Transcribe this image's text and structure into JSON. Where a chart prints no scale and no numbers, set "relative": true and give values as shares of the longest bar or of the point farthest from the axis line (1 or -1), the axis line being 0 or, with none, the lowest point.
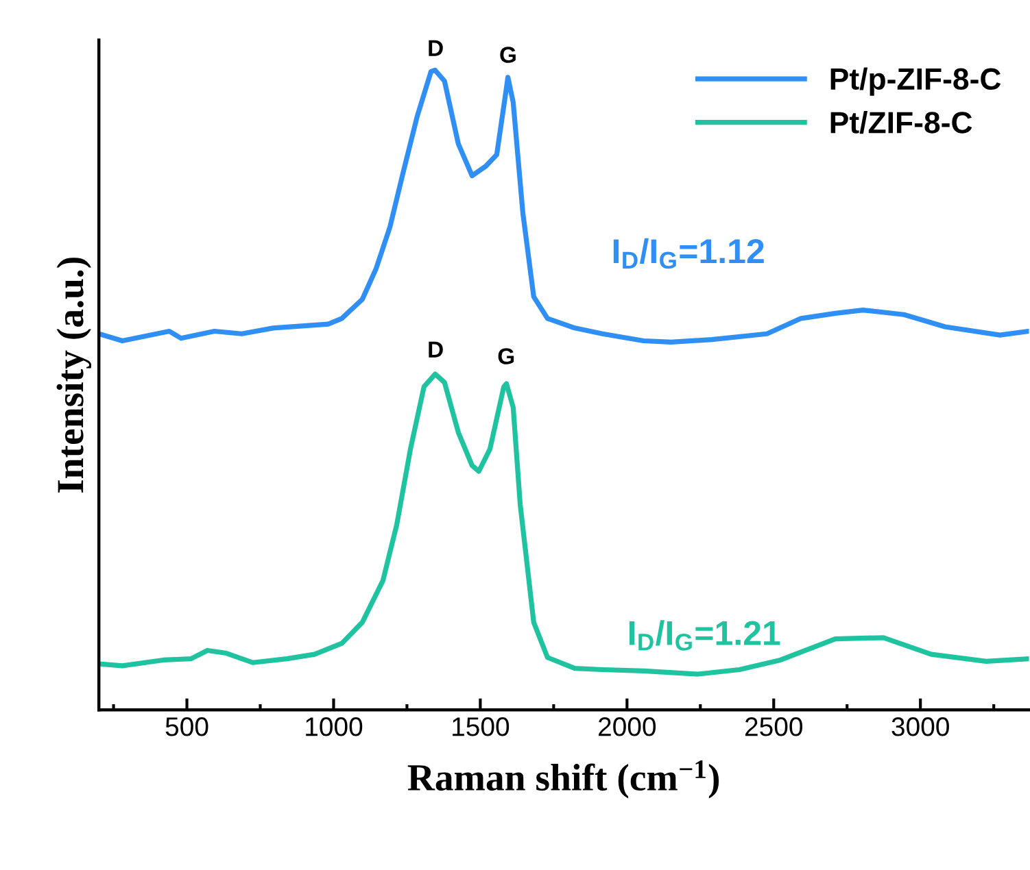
{
  "chart_data": {
    "type": "line",
    "relative": true,
    "xlabel": "Raman shift (cm$^{−1}$)",
    "ylabel": "Intensity (a.u.)",
    "xlim": [
      200,
      3370
    ],
    "xticks": [
      {
        "value": 250,
        "label": null
      },
      500,
      {
        "value": 750,
        "label": null
      },
      1000,
      {
        "value": 1250,
        "label": null
      },
      1500,
      {
        "value": 1750,
        "label": null
      },
      2000,
      {
        "value": 2250,
        "label": null
      },
      2500,
      {
        "value": 2750,
        "label": null
      },
      3000,
      {
        "value": 3250,
        "label": null
      }
    ],
    "tick_labels": "x",
    "legend": "top right",
    "grid": false,
    "marker": "none",
    "line_style": "solid",
    "series": [
      {
        "name": "Pt/p-ZIF-8-C",
        "color": "#2f8ff5",
        "x": [
          200,
          280,
          440,
          480,
          594,
          687,
          794,
          981,
          1028,
          1098,
          1145,
          1192,
          1238,
          1285,
          1332,
          1346,
          1378,
          1425,
          1472,
          1519,
          1556,
          1589,
          1594,
          1612,
          1645,
          1682,
          1729,
          1822,
          1916,
          2056,
          2150,
          2290,
          2477,
          2593,
          2710,
          2804,
          2944,
          3084,
          3271,
          3370
        ],
        "values": [
          0.588,
          0.577,
          0.592,
          0.581,
          0.592,
          0.588,
          0.597,
          0.603,
          0.612,
          0.642,
          0.69,
          0.755,
          0.842,
          0.928,
          0.998,
          1.0,
          0.983,
          0.885,
          0.835,
          0.85,
          0.868,
          0.972,
          0.989,
          0.95,
          0.777,
          0.646,
          0.612,
          0.597,
          0.588,
          0.577,
          0.575,
          0.579,
          0.588,
          0.612,
          0.62,
          0.625,
          0.618,
          0.599,
          0.586,
          0.592
        ]
      },
      {
        "name": "Pt/ZIF-8-C",
        "color": "#1fc3a0",
        "x": [
          200,
          280,
          420,
          514,
          570,
          631,
          724,
          841,
          935,
          1028,
          1098,
          1168,
          1215,
          1262,
          1308,
          1346,
          1378,
          1425,
          1472,
          1495,
          1533,
          1580,
          1589,
          1612,
          1636,
          1682,
          1729,
          1822,
          1916,
          2056,
          2243,
          2383,
          2523,
          2710,
          2874,
          3037,
          3224,
          3370
        ],
        "values": [
          0.072,
          0.069,
          0.078,
          0.08,
          0.093,
          0.089,
          0.074,
          0.08,
          0.087,
          0.104,
          0.137,
          0.202,
          0.289,
          0.408,
          0.505,
          0.525,
          0.512,
          0.434,
          0.382,
          0.373,
          0.408,
          0.505,
          0.51,
          0.473,
          0.321,
          0.137,
          0.082,
          0.065,
          0.063,
          0.061,
          0.056,
          0.063,
          0.078,
          0.111,
          0.113,
          0.087,
          0.076,
          0.08
        ]
      }
    ],
    "annotations": [
      "D",
      "G",
      "D",
      "G",
      "I$_{D}$/I$_{G}$=1.12",
      "I$_{D}$/I$_{G}$=1.21"
    ]
  }
}
